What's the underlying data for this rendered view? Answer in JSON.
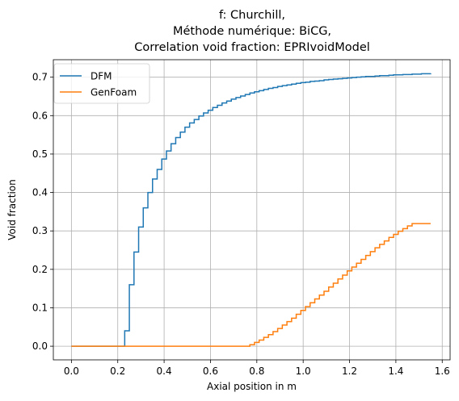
{
  "chart_data": {
    "type": "line",
    "title_lines": [
      "f: Churchill,",
      "Méthode numérique: BiCG,",
      "Correlation void fraction: EPRIvoidModel"
    ],
    "xlabel": "Axial position in m",
    "ylabel": "Void fraction",
    "xlim": [
      -0.078,
      1.634
    ],
    "ylim": [
      -0.0355,
      0.7455
    ],
    "xticks": [
      0.0,
      0.2,
      0.4,
      0.6,
      0.8,
      1.0,
      1.2,
      1.4,
      1.6
    ],
    "xtick_labels": [
      "0.0",
      "0.2",
      "0.4",
      "0.6",
      "0.8",
      "1.0",
      "1.2",
      "1.4",
      "1.6"
    ],
    "yticks": [
      0.0,
      0.1,
      0.2,
      0.3,
      0.4,
      0.5,
      0.6,
      0.7
    ],
    "ytick_labels": [
      "0.0",
      "0.1",
      "0.2",
      "0.3",
      "0.4",
      "0.5",
      "0.6",
      "0.7"
    ],
    "grid": true,
    "legend_position": "top-left",
    "step": "post",
    "series": [
      {
        "name": "DFM",
        "color": "#1f77b4",
        "x": [
          0.0,
          0.23,
          0.25,
          0.27,
          0.29,
          0.31,
          0.33,
          0.35,
          0.37,
          0.39,
          0.41,
          0.43,
          0.45,
          0.47,
          0.49,
          0.51,
          0.53,
          0.55,
          0.57,
          0.59,
          0.61,
          0.63,
          0.65,
          0.67,
          0.69,
          0.71,
          0.73,
          0.75,
          0.77,
          0.79,
          0.81,
          0.83,
          0.85,
          0.87,
          0.89,
          0.91,
          0.93,
          0.95,
          0.97,
          0.99,
          1.01,
          1.03,
          1.05,
          1.07,
          1.09,
          1.11,
          1.13,
          1.15,
          1.17,
          1.19,
          1.21,
          1.23,
          1.25,
          1.27,
          1.29,
          1.31,
          1.33,
          1.35,
          1.37,
          1.39,
          1.41,
          1.43,
          1.45,
          1.47,
          1.49,
          1.51,
          1.53,
          1.55
        ],
        "values": [
          0.0,
          0.04,
          0.16,
          0.245,
          0.31,
          0.36,
          0.4,
          0.435,
          0.46,
          0.487,
          0.508,
          0.527,
          0.543,
          0.557,
          0.57,
          0.581,
          0.59,
          0.599,
          0.607,
          0.614,
          0.621,
          0.627,
          0.633,
          0.638,
          0.643,
          0.647,
          0.651,
          0.655,
          0.659,
          0.662,
          0.665,
          0.668,
          0.671,
          0.673,
          0.676,
          0.678,
          0.68,
          0.682,
          0.684,
          0.686,
          0.687,
          0.689,
          0.69,
          0.691,
          0.693,
          0.694,
          0.695,
          0.696,
          0.697,
          0.698,
          0.699,
          0.7,
          0.701,
          0.702,
          0.702,
          0.703,
          0.704,
          0.704,
          0.705,
          0.706,
          0.706,
          0.707,
          0.707,
          0.708,
          0.708,
          0.709,
          0.709,
          0.71
        ]
      },
      {
        "name": "GenFoam",
        "color": "#ff7f0e",
        "x": [
          0.0,
          0.77,
          0.79,
          0.81,
          0.83,
          0.85,
          0.87,
          0.89,
          0.91,
          0.93,
          0.95,
          0.97,
          0.99,
          1.01,
          1.03,
          1.05,
          1.07,
          1.09,
          1.11,
          1.13,
          1.15,
          1.17,
          1.19,
          1.21,
          1.23,
          1.25,
          1.27,
          1.29,
          1.31,
          1.33,
          1.35,
          1.37,
          1.39,
          1.41,
          1.43,
          1.45,
          1.47,
          1.49,
          1.51,
          1.53,
          1.55
        ],
        "values": [
          0.0,
          0.004,
          0.01,
          0.016,
          0.023,
          0.03,
          0.038,
          0.046,
          0.055,
          0.064,
          0.073,
          0.083,
          0.093,
          0.103,
          0.113,
          0.123,
          0.133,
          0.143,
          0.154,
          0.164,
          0.175,
          0.185,
          0.196,
          0.206,
          0.216,
          0.226,
          0.236,
          0.246,
          0.256,
          0.265,
          0.274,
          0.283,
          0.291,
          0.299,
          0.306,
          0.313,
          0.319,
          0.319,
          0.319,
          0.319,
          0.319
        ]
      }
    ]
  }
}
